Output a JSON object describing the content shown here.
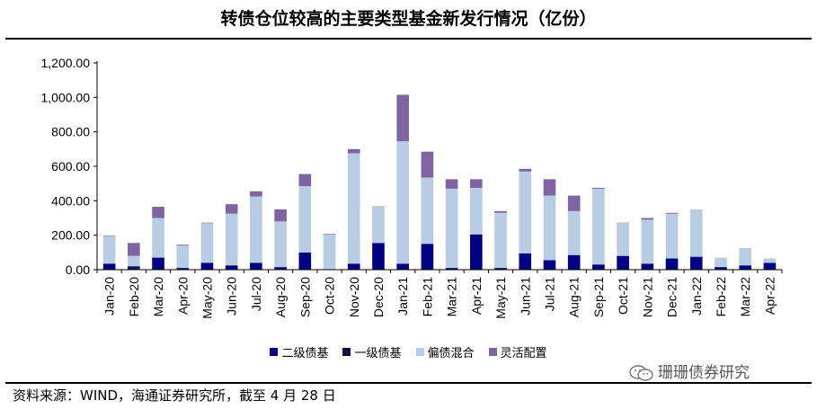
{
  "chart_data": {
    "type": "bar",
    "stacked": true,
    "title": "转债仓位较高的主要类型基金新发行情况（亿份）",
    "xlabel": "",
    "ylabel": "",
    "ylim": [
      0,
      1200
    ],
    "ytick_values": [
      0,
      200,
      400,
      600,
      800,
      1000,
      1200
    ],
    "ytick_labels": [
      "0.00",
      "200.00",
      "400.00",
      "600.00",
      "800.00",
      "1,000.00",
      "1,200.00"
    ],
    "categories": [
      "Jan-20",
      "Feb-20",
      "Mar-20",
      "Apr-20",
      "May-20",
      "Jun-20",
      "Jul-20",
      "Aug-20",
      "Sep-20",
      "Oct-20",
      "Nov-20",
      "Dec-20",
      "Jan-21",
      "Feb-21",
      "Mar-21",
      "Apr-21",
      "May-21",
      "Jun-21",
      "Jul-21",
      "Aug-21",
      "Sep-21",
      "Oct-21",
      "Nov-21",
      "Dec-21",
      "Jan-22",
      "Feb-22",
      "Mar-22",
      "Apr-22"
    ],
    "series": [
      {
        "name": "二级债基",
        "color": "#000080",
        "values": [
          35,
          10,
          70,
          10,
          40,
          25,
          40,
          15,
          100,
          0,
          35,
          155,
          35,
          150,
          10,
          205,
          10,
          95,
          55,
          85,
          30,
          80,
          35,
          65,
          75,
          15,
          25,
          40
        ]
      },
      {
        "name": "一级债基",
        "color": "#101040",
        "values": [
          0,
          10,
          0,
          0,
          0,
          0,
          0,
          0,
          0,
          0,
          0,
          0,
          0,
          0,
          0,
          0,
          0,
          0,
          0,
          0,
          0,
          0,
          0,
          0,
          0,
          0,
          0,
          0
        ]
      },
      {
        "name": "偏债混合",
        "color": "#b8cce4",
        "values": [
          160,
          60,
          230,
          130,
          230,
          300,
          385,
          265,
          385,
          205,
          640,
          215,
          710,
          385,
          460,
          270,
          320,
          475,
          375,
          255,
          440,
          195,
          255,
          260,
          275,
          55,
          100,
          25
        ]
      },
      {
        "name": "灵活配置",
        "color": "#8064a2",
        "values": [
          3,
          75,
          65,
          5,
          3,
          55,
          30,
          70,
          70,
          3,
          25,
          0,
          270,
          150,
          55,
          50,
          10,
          15,
          95,
          90,
          5,
          0,
          10,
          5,
          0,
          0,
          0,
          0
        ]
      }
    ],
    "legend_position": "bottom-center"
  },
  "footer": {
    "source": "资料来源：WIND，海通证券研究所，截至 4 月 28 日"
  },
  "watermark": {
    "text": "珊珊债券研究",
    "icon": "wechat-icon"
  }
}
